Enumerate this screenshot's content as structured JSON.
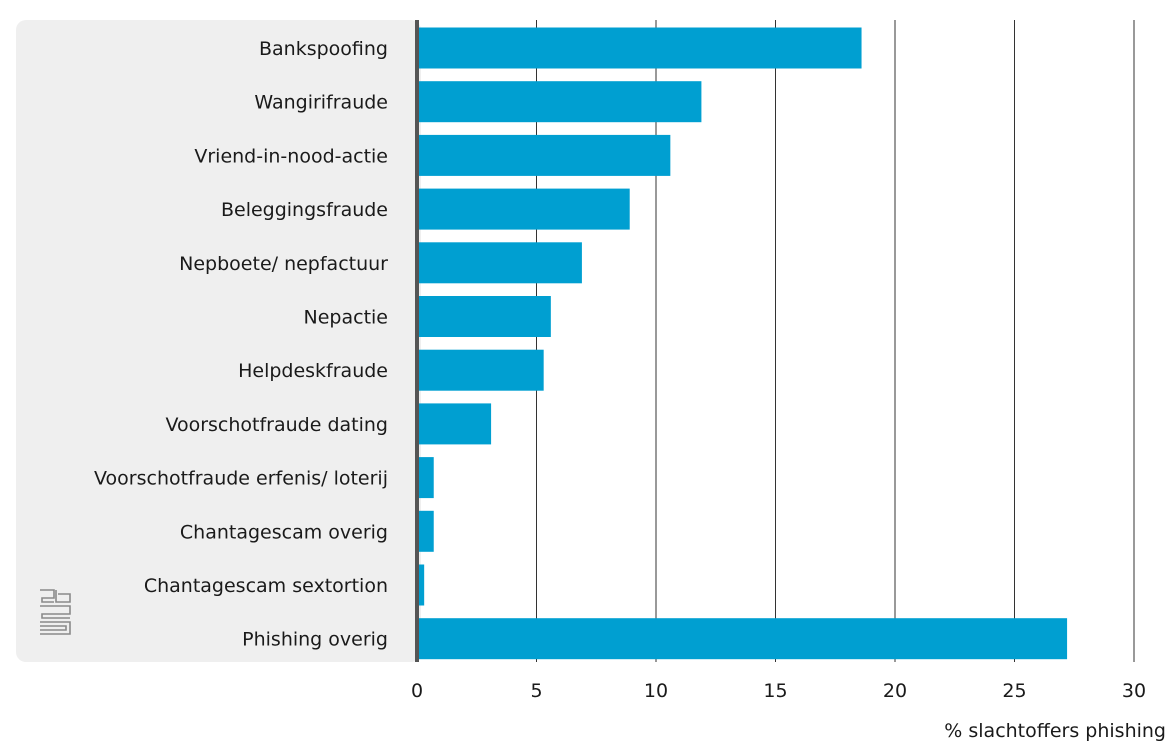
{
  "chart_data": {
    "type": "bar",
    "orientation": "horizontal",
    "categories": [
      "Bankspoofing",
      "Wangirifraude",
      "Vriend-in-nood-actie",
      "Beleggingsfraude",
      "Nepboete/ nepfactuur",
      "Nepactie",
      "Helpdeskfraude",
      "Voorschotfraude dating",
      "Voorschotfraude erfenis/ loterij",
      "Chantagescam overig",
      "Chantagescam sextortion",
      "Phishing overig"
    ],
    "values": [
      18.6,
      11.9,
      10.6,
      8.9,
      6.9,
      5.6,
      5.3,
      3.1,
      0.7,
      0.7,
      0.3,
      27.2
    ],
    "xlabel": "% slachtoffers phishing",
    "ylabel": "",
    "xlim": [
      0,
      30
    ],
    "xticks": [
      0,
      5,
      10,
      15,
      20,
      25,
      30
    ],
    "grid": true,
    "bar_color": "#009fd1",
    "label_panel_color": "#efefef",
    "axis_color": "#555555",
    "logo": "cbs-logo"
  }
}
